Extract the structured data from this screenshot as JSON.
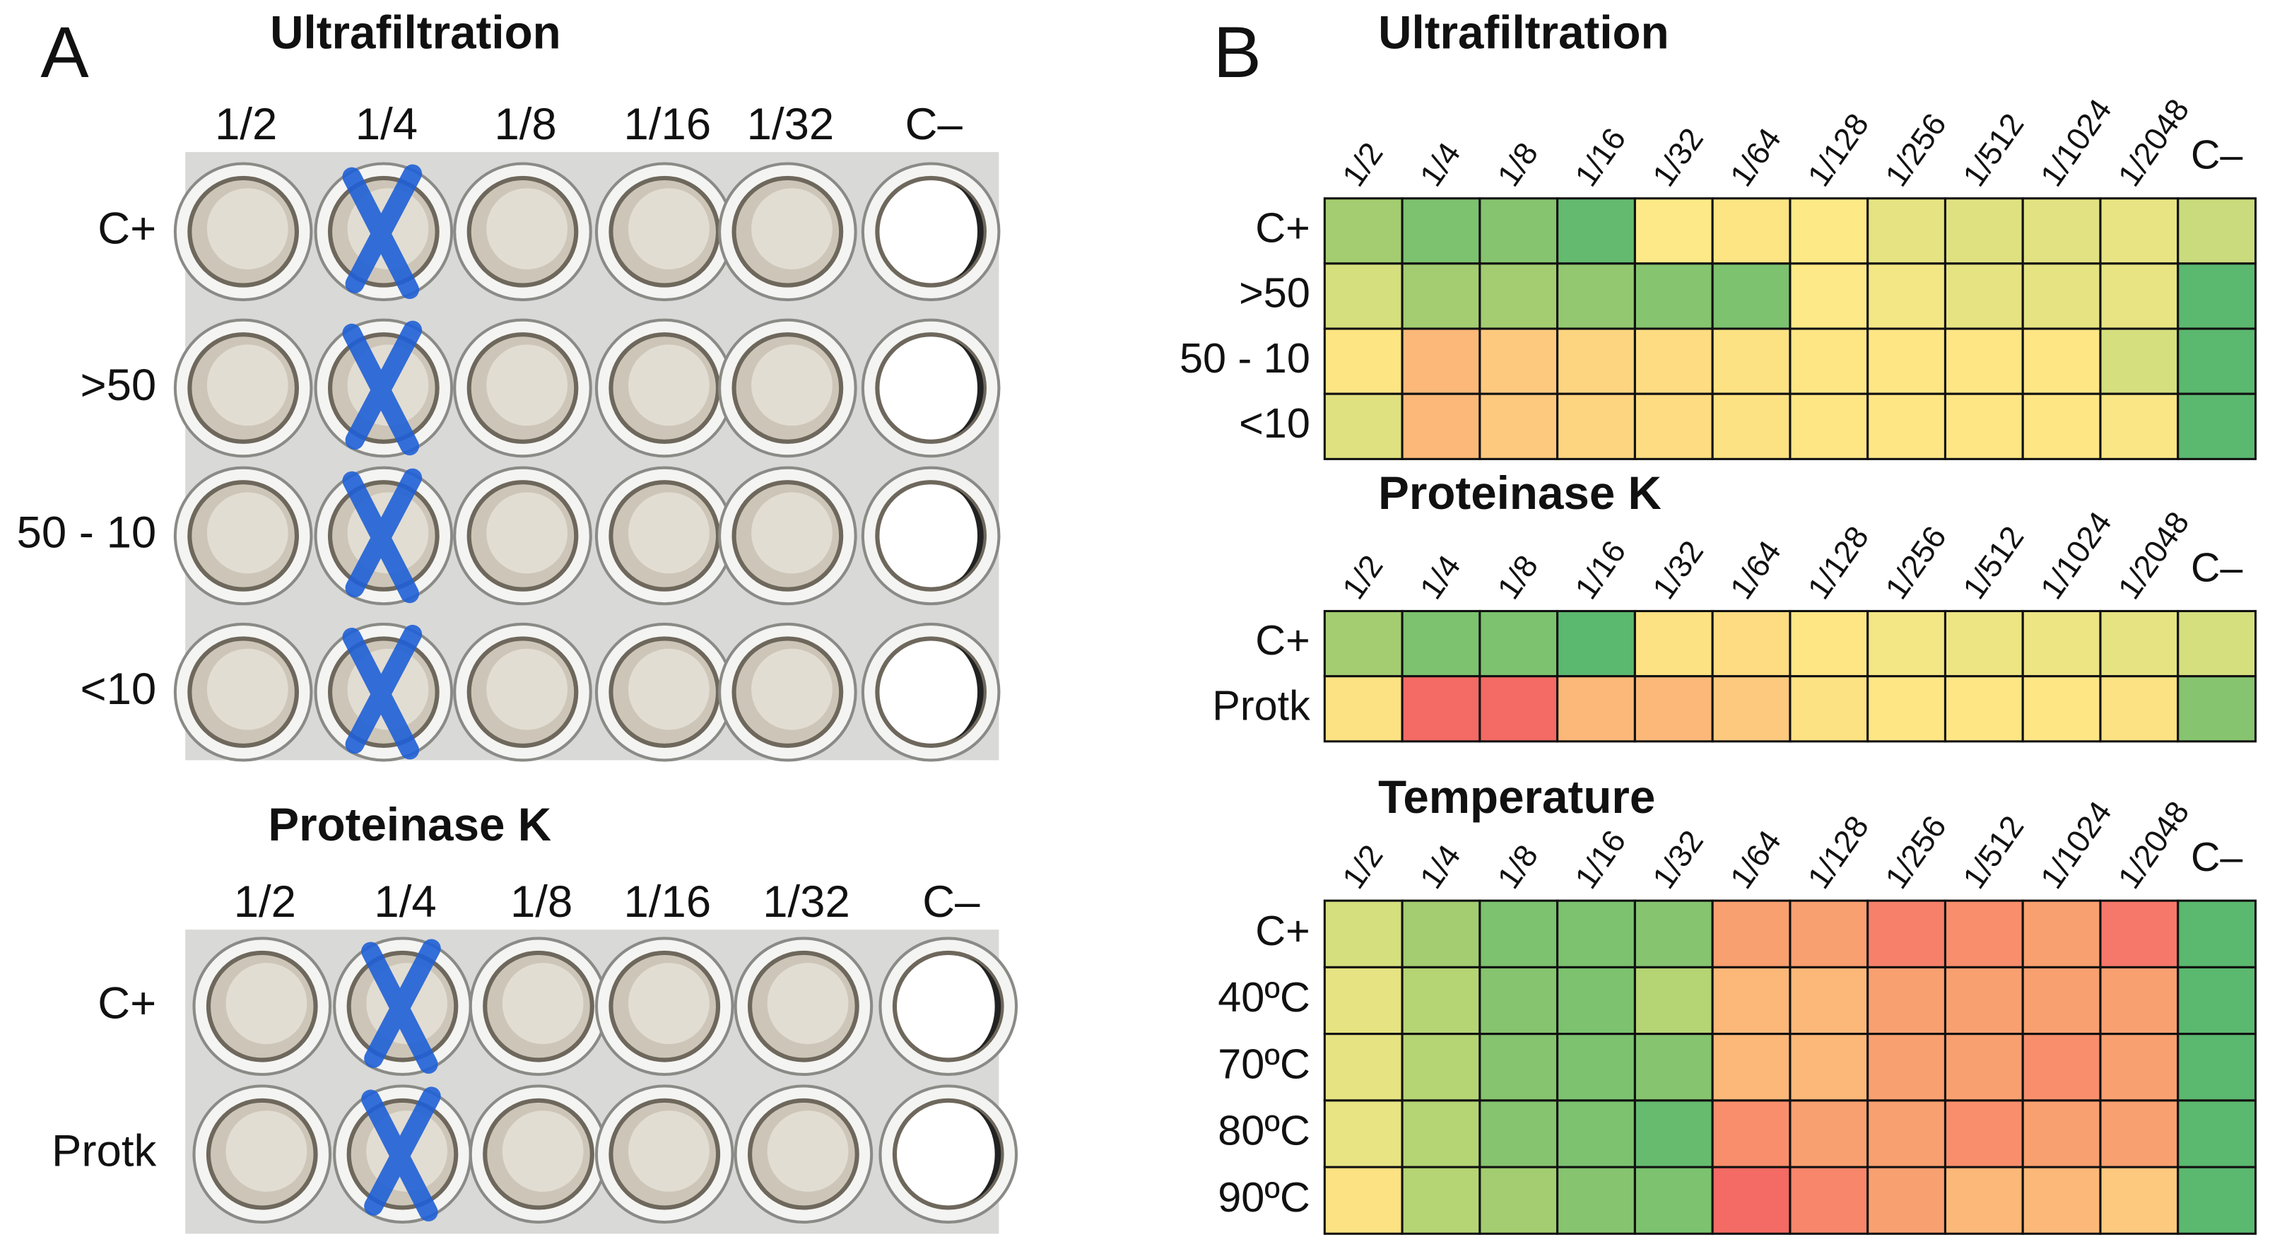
{
  "panel_a": {
    "label": "A",
    "plates": [
      {
        "title": "Ultrafiltration",
        "columns": [
          "1/2",
          "1/4",
          "1/8",
          "1/16",
          "1/32",
          "C–"
        ],
        "rows": [
          "C+",
          ">50",
          "50 - 10",
          "<10"
        ]
      },
      {
        "title": "Proteinase K",
        "columns": [
          "1/2",
          "1/4",
          "1/8",
          "1/16",
          "1/32",
          "C–"
        ],
        "rows": [
          "C+",
          "Protk"
        ]
      }
    ]
  },
  "panel_b": {
    "label": "B",
    "heatmaps": [
      {
        "title": "Ultrafiltration",
        "columns": [
          "1/2",
          "1/4",
          "1/8",
          "1/16",
          "1/32",
          "1/64",
          "1/128",
          "1/256",
          "1/512",
          "1/1024",
          "1/2048",
          "C–"
        ],
        "rows": [
          "C+",
          ">50",
          "50 - 10",
          "<10"
        ],
        "colors": [
          [
            "#a3cd70",
            "#7cc26f",
            "#86c46f",
            "#64ba6f",
            "#fde987",
            "#fde583",
            "#fee987",
            "#e6e382",
            "#dfe181",
            "#e2e282",
            "#e8e483",
            "#c9db7c"
          ],
          [
            "#d5df7e",
            "#a3cd70",
            "#a3cd70",
            "#93c870",
            "#86c46f",
            "#7cc26f",
            "#fde987",
            "#f3e685",
            "#e6e382",
            "#e6e382",
            "#e8e483",
            "#5bb86f"
          ],
          [
            "#fde583",
            "#fbb878",
            "#fcc97e",
            "#fdd580",
            "#fddc82",
            "#fde283",
            "#fee685",
            "#fee685",
            "#fee685",
            "#fee685",
            "#d5df7e",
            "#5bb86f"
          ],
          [
            "#dfe181",
            "#fbb878",
            "#fcc97e",
            "#fdd580",
            "#fddc82",
            "#fde283",
            "#fee685",
            "#fee685",
            "#fee685",
            "#fee685",
            "#fbe685",
            "#5bb86f"
          ]
        ]
      },
      {
        "title": "Proteinase K",
        "columns": [
          "1/2",
          "1/4",
          "1/8",
          "1/16",
          "1/32",
          "1/64",
          "1/128",
          "1/256",
          "1/512",
          "1/1024",
          "1/2048",
          "C–"
        ],
        "rows": [
          "C+",
          "Protk"
        ],
        "colors": [
          [
            "#a3cd70",
            "#7cc26f",
            "#7cc26f",
            "#5bb86f",
            "#fde283",
            "#fddc82",
            "#fee685",
            "#f3e685",
            "#ede483",
            "#ede483",
            "#e6e382",
            "#d5df7e"
          ],
          [
            "#fde283",
            "#f46a64",
            "#f46a64",
            "#fbb878",
            "#fbb878",
            "#fcc97e",
            "#fde283",
            "#fee685",
            "#fee685",
            "#fee685",
            "#fde283",
            "#86c46f"
          ]
        ]
      },
      {
        "title": "Temperature",
        "columns": [
          "1/2",
          "1/4",
          "1/8",
          "1/16",
          "1/32",
          "1/64",
          "1/128",
          "1/256",
          "1/512",
          "1/1024",
          "1/2048",
          "C–"
        ],
        "rows": [
          "C+",
          "40ºC",
          "70ºC",
          "80ºC",
          "90ºC"
        ],
        "colors": [
          [
            "#d5df7e",
            "#a3cd70",
            "#7cc26f",
            "#7cc26f",
            "#86c46f",
            "#f9a070",
            "#f9a070",
            "#f7806a",
            "#f88e6c",
            "#f9a070",
            "#f6786a",
            "#5bb86f"
          ],
          [
            "#e6e382",
            "#b5d474",
            "#86c46f",
            "#7cc26f",
            "#b5d474",
            "#fbb878",
            "#fbb878",
            "#f9a070",
            "#f9a070",
            "#f9a070",
            "#f9a070",
            "#5bb86f"
          ],
          [
            "#e6e382",
            "#b5d474",
            "#86c46f",
            "#7cc26f",
            "#86c46f",
            "#fbb878",
            "#fbb878",
            "#f9a070",
            "#f9a070",
            "#f88e6c",
            "#f9a070",
            "#5bb86f"
          ],
          [
            "#e8e483",
            "#b5d474",
            "#86c46f",
            "#7cc26f",
            "#66bb6f",
            "#f88e6c",
            "#f9a070",
            "#f9a070",
            "#f88e6c",
            "#f9a070",
            "#f9a070",
            "#5bb86f"
          ],
          [
            "#fde283",
            "#b5d474",
            "#a3cd70",
            "#86c46f",
            "#7cc26f",
            "#f46a64",
            "#f7866a",
            "#f9a070",
            "#fbb878",
            "#fbb878",
            "#fcc97e",
            "#5bb86f"
          ]
        ]
      }
    ]
  }
}
